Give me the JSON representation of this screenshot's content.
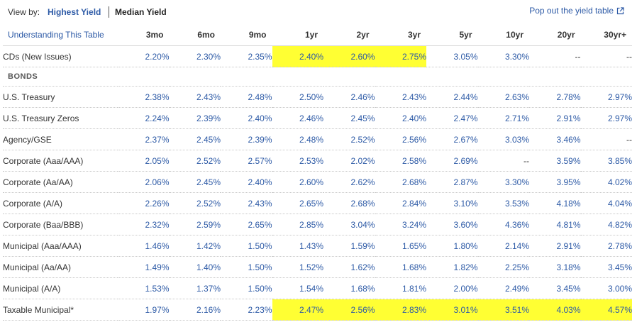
{
  "view_by": {
    "label": "View by:",
    "options": [
      {
        "label": "Highest Yield",
        "active": true
      },
      {
        "label": "Median Yield",
        "active": false
      }
    ]
  },
  "popout_label": "Pop out the yield table",
  "icons": {
    "popout": "external-link-icon"
  },
  "colors": {
    "link": "#2d5aa6",
    "highlight": "#ffff33"
  },
  "table": {
    "corner_label": "Understanding This Table",
    "columns": [
      "3mo",
      "6mo",
      "9mo",
      "1yr",
      "2yr",
      "3yr",
      "5yr",
      "10yr",
      "20yr",
      "30yr+"
    ],
    "cds": {
      "label": "CDs (New Issues)",
      "values": [
        "2.20%",
        "2.30%",
        "2.35%",
        "2.40%",
        "2.60%",
        "2.75%",
        "3.05%",
        "3.30%",
        "--",
        "--"
      ],
      "highlight": [
        false,
        false,
        false,
        true,
        true,
        true,
        false,
        false,
        false,
        false
      ]
    },
    "bonds_header": "BONDS",
    "bonds": [
      {
        "label": "U.S. Treasury",
        "values": [
          "2.38%",
          "2.43%",
          "2.48%",
          "2.50%",
          "2.46%",
          "2.43%",
          "2.44%",
          "2.63%",
          "2.78%",
          "2.97%"
        ],
        "highlight": [
          false,
          false,
          false,
          false,
          false,
          false,
          false,
          false,
          false,
          false
        ]
      },
      {
        "label": "U.S. Treasury Zeros",
        "values": [
          "2.24%",
          "2.39%",
          "2.40%",
          "2.46%",
          "2.45%",
          "2.40%",
          "2.47%",
          "2.71%",
          "2.91%",
          "2.97%"
        ],
        "highlight": [
          false,
          false,
          false,
          false,
          false,
          false,
          false,
          false,
          false,
          false
        ]
      },
      {
        "label": "Agency/GSE",
        "values": [
          "2.37%",
          "2.45%",
          "2.39%",
          "2.48%",
          "2.52%",
          "2.56%",
          "2.67%",
          "3.03%",
          "3.46%",
          "--"
        ],
        "highlight": [
          false,
          false,
          false,
          false,
          false,
          false,
          false,
          false,
          false,
          false
        ]
      },
      {
        "label": "Corporate (Aaa/AAA)",
        "values": [
          "2.05%",
          "2.52%",
          "2.57%",
          "2.53%",
          "2.02%",
          "2.58%",
          "2.69%",
          "--",
          "3.59%",
          "3.85%"
        ],
        "highlight": [
          false,
          false,
          false,
          false,
          false,
          false,
          false,
          false,
          false,
          false
        ]
      },
      {
        "label": "Corporate (Aa/AA)",
        "values": [
          "2.06%",
          "2.45%",
          "2.40%",
          "2.60%",
          "2.62%",
          "2.68%",
          "2.87%",
          "3.30%",
          "3.95%",
          "4.02%"
        ],
        "highlight": [
          false,
          false,
          false,
          false,
          false,
          false,
          false,
          false,
          false,
          false
        ]
      },
      {
        "label": "Corporate (A/A)",
        "values": [
          "2.26%",
          "2.52%",
          "2.43%",
          "2.65%",
          "2.68%",
          "2.84%",
          "3.10%",
          "3.53%",
          "4.18%",
          "4.04%"
        ],
        "highlight": [
          false,
          false,
          false,
          false,
          false,
          false,
          false,
          false,
          false,
          false
        ]
      },
      {
        "label": "Corporate (Baa/BBB)",
        "values": [
          "2.32%",
          "2.59%",
          "2.65%",
          "2.85%",
          "3.04%",
          "3.24%",
          "3.60%",
          "4.36%",
          "4.81%",
          "4.82%"
        ],
        "highlight": [
          false,
          false,
          false,
          false,
          false,
          false,
          false,
          false,
          false,
          false
        ]
      },
      {
        "label": "Municipal (Aaa/AAA)",
        "values": [
          "1.46%",
          "1.42%",
          "1.50%",
          "1.43%",
          "1.59%",
          "1.65%",
          "1.80%",
          "2.14%",
          "2.91%",
          "2.78%"
        ],
        "highlight": [
          false,
          false,
          false,
          false,
          false,
          false,
          false,
          false,
          false,
          false
        ]
      },
      {
        "label": "Municipal (Aa/AA)",
        "values": [
          "1.49%",
          "1.40%",
          "1.50%",
          "1.52%",
          "1.62%",
          "1.68%",
          "1.82%",
          "2.25%",
          "3.18%",
          "3.45%"
        ],
        "highlight": [
          false,
          false,
          false,
          false,
          false,
          false,
          false,
          false,
          false,
          false
        ]
      },
      {
        "label": "Municipal (A/A)",
        "values": [
          "1.53%",
          "1.37%",
          "1.50%",
          "1.54%",
          "1.68%",
          "1.81%",
          "2.00%",
          "2.49%",
          "3.45%",
          "3.00%"
        ],
        "highlight": [
          false,
          false,
          false,
          false,
          false,
          false,
          false,
          false,
          false,
          false
        ]
      },
      {
        "label": "Taxable Municipal*",
        "values": [
          "1.97%",
          "2.16%",
          "2.23%",
          "2.47%",
          "2.56%",
          "2.83%",
          "3.01%",
          "3.51%",
          "4.03%",
          "4.57%"
        ],
        "highlight": [
          false,
          false,
          false,
          true,
          true,
          true,
          true,
          true,
          true,
          true
        ]
      }
    ]
  }
}
